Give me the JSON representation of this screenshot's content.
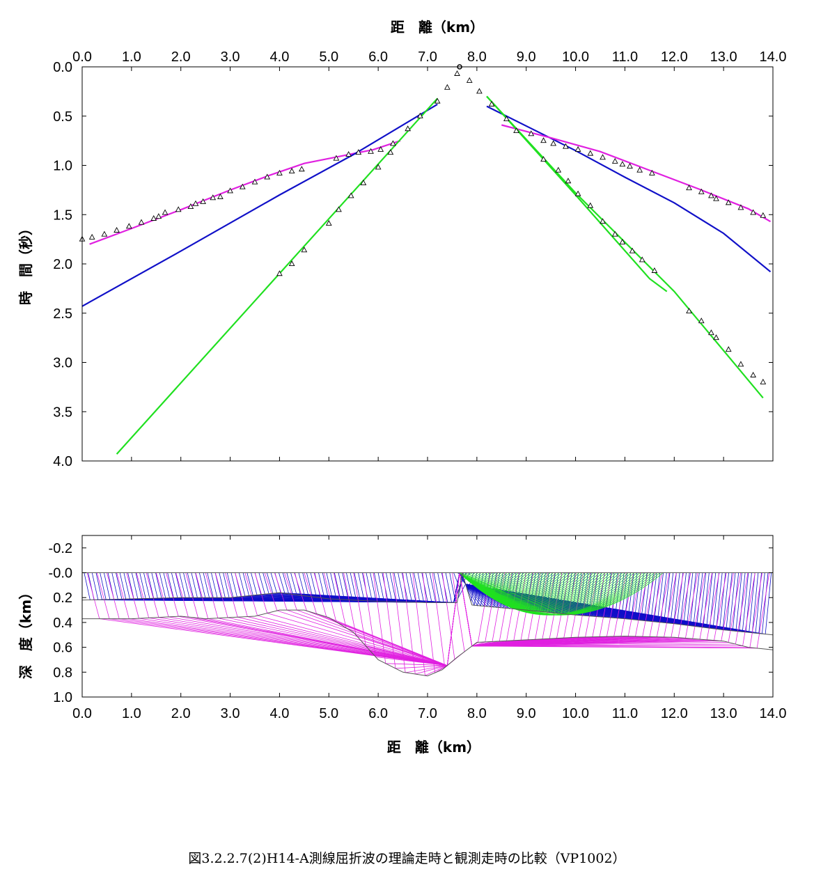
{
  "caption": "図3.2.2.7(2)H14-A測線屈折波の理論走時と観測走時の比較（VP1002）",
  "colors": {
    "magenta": "#e020e0",
    "blue": "#1010c8",
    "green": "#20e020",
    "axis": "#000000",
    "model_line": "#555555"
  },
  "chart_data": [
    {
      "type": "scatter",
      "title": "",
      "xlabel": "距　離（km）",
      "ylabel": "時　間（秒）",
      "xlim": [
        0.0,
        14.0
      ],
      "ylim": [
        4.0,
        0.0
      ],
      "x_ticks": [
        "0.0",
        "1.0",
        "2.0",
        "3.0",
        "4.0",
        "5.0",
        "6.0",
        "7.0",
        "8.0",
        "9.0",
        "10.0",
        "11.0",
        "12.0",
        "13.0",
        "14.0"
      ],
      "y_ticks": [
        "0.0",
        "0.5",
        "1.0",
        "1.5",
        "2.0",
        "2.5",
        "3.0",
        "3.5",
        "4.0"
      ],
      "source": {
        "x": 7.65,
        "t": 0.0
      },
      "observed": [
        [
          0.0,
          1.75
        ],
        [
          0.2,
          1.73
        ],
        [
          0.45,
          1.7
        ],
        [
          0.7,
          1.66
        ],
        [
          0.95,
          1.62
        ],
        [
          1.2,
          1.58
        ],
        [
          1.45,
          1.54
        ],
        [
          1.55,
          1.52
        ],
        [
          1.68,
          1.48
        ],
        [
          1.95,
          1.45
        ],
        [
          2.2,
          1.42
        ],
        [
          2.3,
          1.39
        ],
        [
          2.45,
          1.37
        ],
        [
          2.65,
          1.33
        ],
        [
          2.8,
          1.32
        ],
        [
          3.0,
          1.26
        ],
        [
          3.25,
          1.22
        ],
        [
          3.5,
          1.17
        ],
        [
          3.75,
          1.12
        ],
        [
          4.0,
          1.08
        ],
        [
          4.25,
          1.06
        ],
        [
          4.45,
          1.04
        ],
        [
          5.15,
          0.93
        ],
        [
          5.4,
          0.89
        ],
        [
          5.6,
          0.87
        ],
        [
          5.85,
          0.86
        ],
        [
          6.05,
          0.84
        ],
        [
          6.3,
          0.78
        ],
        [
          6.6,
          0.63
        ],
        [
          6.85,
          0.5
        ],
        [
          7.2,
          0.35
        ],
        [
          7.4,
          0.21
        ],
        [
          7.6,
          0.07
        ],
        [
          4.0,
          2.1
        ],
        [
          4.25,
          2.0
        ],
        [
          4.5,
          1.86
        ],
        [
          5.0,
          1.59
        ],
        [
          5.2,
          1.45
        ],
        [
          5.45,
          1.31
        ],
        [
          5.7,
          1.18
        ],
        [
          6.0,
          1.02
        ],
        [
          6.25,
          0.87
        ],
        [
          7.85,
          0.14
        ],
        [
          8.05,
          0.25
        ],
        [
          8.3,
          0.38
        ],
        [
          8.6,
          0.53
        ],
        [
          8.8,
          0.65
        ],
        [
          9.1,
          0.68
        ],
        [
          9.35,
          0.75
        ],
        [
          9.55,
          0.78
        ],
        [
          9.8,
          0.81
        ],
        [
          10.05,
          0.84
        ],
        [
          10.3,
          0.88
        ],
        [
          10.55,
          0.92
        ],
        [
          10.8,
          0.96
        ],
        [
          10.95,
          0.99
        ],
        [
          11.1,
          1.01
        ],
        [
          11.3,
          1.05
        ],
        [
          11.55,
          1.08
        ],
        [
          9.35,
          0.94
        ],
        [
          9.65,
          1.05
        ],
        [
          9.85,
          1.16
        ],
        [
          10.05,
          1.29
        ],
        [
          10.3,
          1.41
        ],
        [
          10.55,
          1.57
        ],
        [
          10.8,
          1.7
        ],
        [
          10.95,
          1.78
        ],
        [
          11.15,
          1.87
        ],
        [
          11.35,
          1.96
        ],
        [
          11.6,
          2.07
        ],
        [
          12.3,
          1.23
        ],
        [
          12.55,
          1.27
        ],
        [
          12.75,
          1.31
        ],
        [
          12.85,
          1.34
        ],
        [
          13.1,
          1.38
        ],
        [
          13.35,
          1.43
        ],
        [
          13.6,
          1.48
        ],
        [
          13.8,
          1.51
        ],
        [
          12.3,
          2.48
        ],
        [
          12.55,
          2.58
        ],
        [
          12.75,
          2.7
        ],
        [
          12.85,
          2.75
        ],
        [
          13.1,
          2.87
        ],
        [
          13.35,
          3.02
        ],
        [
          13.6,
          3.13
        ],
        [
          13.8,
          3.2
        ]
      ],
      "series": [
        {
          "color": "#e020e0",
          "points": [
            [
              0.15,
              1.8
            ],
            [
              1.0,
              1.64
            ],
            [
              2.0,
              1.45
            ],
            [
              3.0,
              1.25
            ],
            [
              3.8,
              1.1
            ],
            [
              4.5,
              0.98
            ],
            [
              5.3,
              0.9
            ],
            [
              5.9,
              0.84
            ],
            [
              6.45,
              0.75
            ]
          ]
        },
        {
          "color": "#1010c8",
          "points": [
            [
              0.0,
              2.43
            ],
            [
              2.0,
              1.87
            ],
            [
              4.0,
              1.3
            ],
            [
              5.5,
              0.89
            ],
            [
              7.2,
              0.38
            ]
          ]
        },
        {
          "color": "#20e020",
          "points": [
            [
              0.7,
              3.93
            ],
            [
              7.2,
              0.32
            ]
          ]
        },
        {
          "color": "#1010c8",
          "points": [
            [
              8.2,
              0.4
            ],
            [
              10.0,
              0.85
            ],
            [
              11.0,
              1.12
            ],
            [
              12.0,
              1.38
            ],
            [
              13.0,
              1.69
            ],
            [
              13.95,
              2.08
            ]
          ]
        },
        {
          "color": "#e020e0",
          "points": [
            [
              8.5,
              0.59
            ],
            [
              9.5,
              0.72
            ],
            [
              10.5,
              0.86
            ],
            [
              11.5,
              1.05
            ],
            [
              12.5,
              1.24
            ],
            [
              13.5,
              1.44
            ],
            [
              13.95,
              1.57
            ]
          ]
        },
        {
          "color": "#20e020",
          "points": [
            [
              8.2,
              0.3
            ],
            [
              10.0,
              1.3
            ],
            [
              11.5,
              2.15
            ],
            [
              11.85,
              2.28
            ]
          ]
        },
        {
          "color": "#20e020",
          "points": [
            [
              8.2,
              0.3
            ],
            [
              10.0,
              1.28
            ],
            [
              12.0,
              2.28
            ],
            [
              13.8,
              3.36
            ]
          ]
        }
      ]
    },
    {
      "type": "line",
      "title": "",
      "xlabel": "距　離（km）",
      "ylabel": "深　度（km）",
      "xlim": [
        0.0,
        14.0
      ],
      "ylim": [
        1.0,
        -0.3
      ],
      "x_ticks": [
        "0.0",
        "1.0",
        "2.0",
        "3.0",
        "4.0",
        "5.0",
        "6.0",
        "7.0",
        "8.0",
        "9.0",
        "10.0",
        "11.0",
        "12.0",
        "13.0",
        "14.0"
      ],
      "y_ticks": [
        "-0.2",
        "-0.0",
        "0.2",
        "0.4",
        "0.6",
        "0.8",
        "1.0"
      ],
      "surface": [
        [
          0.0,
          0.0
        ],
        [
          14.0,
          0.0
        ]
      ],
      "layer1_base": [
        [
          0.0,
          0.22
        ],
        [
          1.0,
          0.21
        ],
        [
          2.0,
          0.2
        ],
        [
          3.0,
          0.2
        ],
        [
          4.0,
          0.16
        ],
        [
          5.0,
          0.21
        ],
        [
          6.0,
          0.23
        ],
        [
          7.0,
          0.24
        ],
        [
          7.6,
          0.24
        ],
        [
          7.7,
          0.0
        ],
        [
          7.9,
          0.26
        ],
        [
          9.0,
          0.3
        ],
        [
          10.0,
          0.34
        ],
        [
          11.0,
          0.37
        ],
        [
          12.0,
          0.41
        ],
        [
          13.0,
          0.46
        ],
        [
          14.0,
          0.5
        ]
      ],
      "layer2_base": [
        [
          0.0,
          0.37
        ],
        [
          1.0,
          0.37
        ],
        [
          2.0,
          0.35
        ],
        [
          2.5,
          0.37
        ],
        [
          3.0,
          0.36
        ],
        [
          3.5,
          0.35
        ],
        [
          4.0,
          0.3
        ],
        [
          4.5,
          0.3
        ],
        [
          5.0,
          0.36
        ],
        [
          5.5,
          0.48
        ],
        [
          6.0,
          0.7
        ],
        [
          6.5,
          0.8
        ],
        [
          7.0,
          0.83
        ],
        [
          7.3,
          0.78
        ],
        [
          7.6,
          0.68
        ],
        [
          8.0,
          0.56
        ],
        [
          9.0,
          0.54
        ],
        [
          10.0,
          0.52
        ],
        [
          11.0,
          0.51
        ],
        [
          12.0,
          0.52
        ],
        [
          13.0,
          0.55
        ],
        [
          13.5,
          0.6
        ],
        [
          14.0,
          0.62
        ]
      ],
      "ray_fans": [
        {
          "color": "#1010c8",
          "x_range": [
            0.0,
            7.65
          ],
          "count": 95,
          "layer": 1
        },
        {
          "color": "#1010c8",
          "x_range": [
            7.7,
            14.0
          ],
          "count": 95,
          "layer": 1
        },
        {
          "color": "#e020e0",
          "x_range": [
            0.0,
            7.6
          ],
          "count": 38,
          "layer": 2
        },
        {
          "color": "#e020e0",
          "x_range": [
            8.2,
            14.0
          ],
          "count": 40,
          "layer": 2
        },
        {
          "color": "#20e020",
          "x_range": [
            7.7,
            11.8
          ],
          "count": 70,
          "layer": 0
        }
      ]
    }
  ]
}
